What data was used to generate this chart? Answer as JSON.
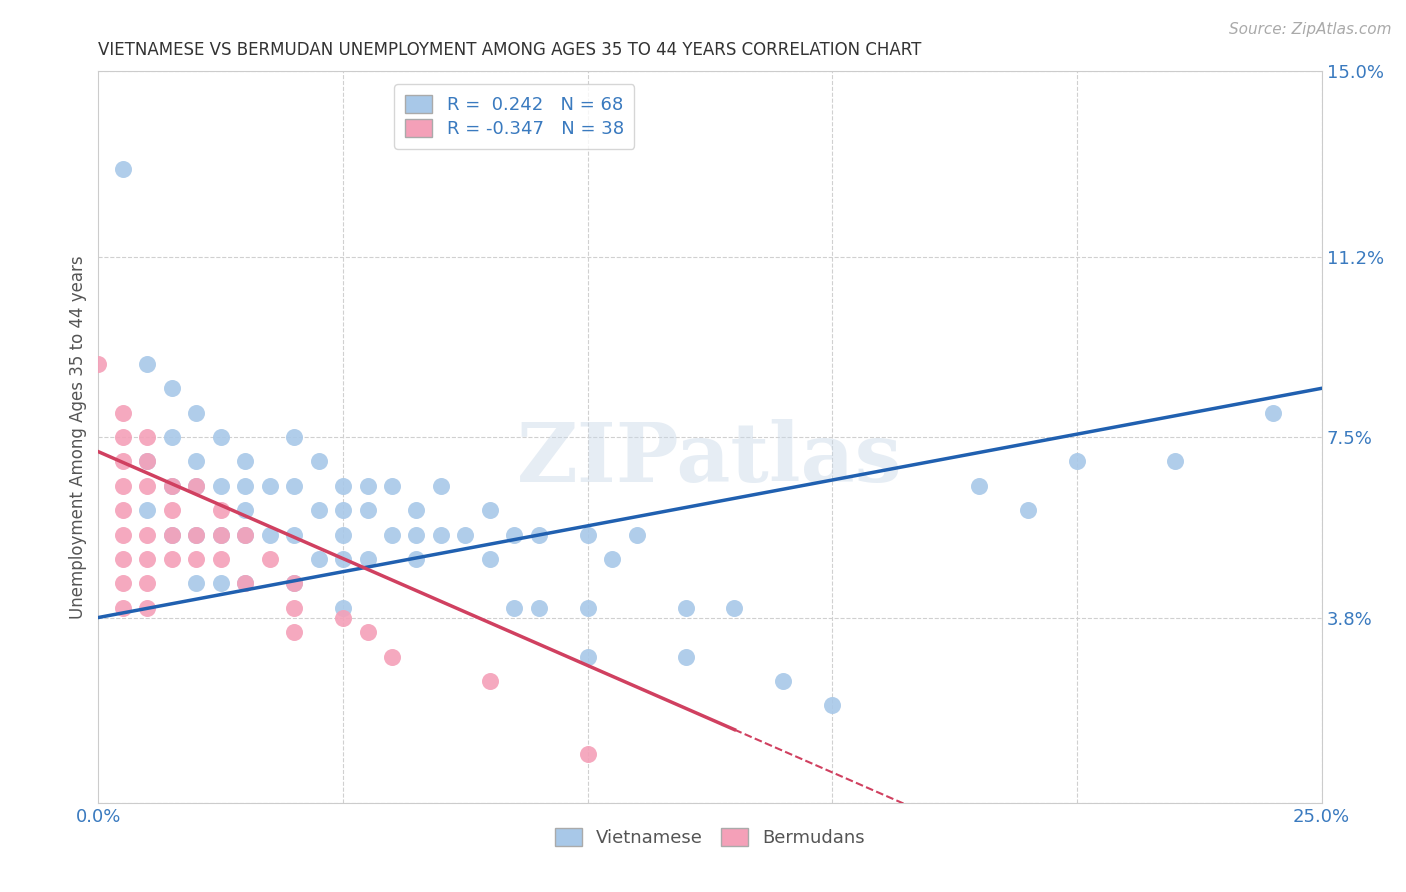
{
  "title": "VIETNAMESE VS BERMUDAN UNEMPLOYMENT AMONG AGES 35 TO 44 YEARS CORRELATION CHART",
  "source": "Source: ZipAtlas.com",
  "ylabel": "Unemployment Among Ages 35 to 44 years",
  "xlim": [
    0.0,
    0.25
  ],
  "ylim": [
    0.0,
    0.15
  ],
  "xticks": [
    0.0,
    0.05,
    0.1,
    0.15,
    0.2,
    0.25
  ],
  "xticklabels": [
    "0.0%",
    "",
    "",
    "",
    "",
    "25.0%"
  ],
  "yticks_right": [
    0.0,
    0.038,
    0.075,
    0.112,
    0.15
  ],
  "ytick_labels_right": [
    "",
    "3.8%",
    "7.5%",
    "11.2%",
    "15.0%"
  ],
  "grid_color": "#d0d0d0",
  "background_color": "#ffffff",
  "viet_color": "#a8c8e8",
  "berm_color": "#f4a0b8",
  "viet_line_color": "#2060b0",
  "berm_line_color": "#d04060",
  "legend_label_viet": "R =  0.242   N = 68",
  "legend_label_berm": "R = -0.347   N = 38",
  "bottom_legend_viet": "Vietnamese",
  "bottom_legend_berm": "Bermudans",
  "watermark": "ZIPatlas",
  "viet_x": [
    0.005,
    0.01,
    0.01,
    0.01,
    0.015,
    0.015,
    0.015,
    0.015,
    0.02,
    0.02,
    0.02,
    0.02,
    0.02,
    0.025,
    0.025,
    0.025,
    0.025,
    0.03,
    0.03,
    0.03,
    0.03,
    0.03,
    0.035,
    0.035,
    0.04,
    0.04,
    0.04,
    0.04,
    0.045,
    0.045,
    0.045,
    0.05,
    0.05,
    0.05,
    0.05,
    0.05,
    0.055,
    0.055,
    0.055,
    0.06,
    0.06,
    0.065,
    0.065,
    0.065,
    0.07,
    0.07,
    0.075,
    0.08,
    0.08,
    0.085,
    0.085,
    0.09,
    0.09,
    0.1,
    0.1,
    0.1,
    0.105,
    0.11,
    0.12,
    0.12,
    0.13,
    0.14,
    0.15,
    0.18,
    0.19,
    0.2,
    0.22,
    0.24
  ],
  "viet_y": [
    0.13,
    0.09,
    0.07,
    0.06,
    0.085,
    0.075,
    0.065,
    0.055,
    0.08,
    0.07,
    0.065,
    0.055,
    0.045,
    0.075,
    0.065,
    0.055,
    0.045,
    0.07,
    0.065,
    0.06,
    0.055,
    0.045,
    0.065,
    0.055,
    0.075,
    0.065,
    0.055,
    0.045,
    0.07,
    0.06,
    0.05,
    0.065,
    0.06,
    0.055,
    0.05,
    0.04,
    0.065,
    0.06,
    0.05,
    0.065,
    0.055,
    0.06,
    0.055,
    0.05,
    0.065,
    0.055,
    0.055,
    0.06,
    0.05,
    0.055,
    0.04,
    0.055,
    0.04,
    0.055,
    0.04,
    0.03,
    0.05,
    0.055,
    0.04,
    0.03,
    0.04,
    0.025,
    0.02,
    0.065,
    0.06,
    0.07,
    0.07,
    0.08
  ],
  "berm_x": [
    0.0,
    0.005,
    0.005,
    0.005,
    0.005,
    0.005,
    0.005,
    0.005,
    0.005,
    0.005,
    0.01,
    0.01,
    0.01,
    0.01,
    0.01,
    0.01,
    0.01,
    0.015,
    0.015,
    0.015,
    0.015,
    0.02,
    0.02,
    0.02,
    0.025,
    0.025,
    0.025,
    0.03,
    0.03,
    0.035,
    0.04,
    0.04,
    0.04,
    0.05,
    0.055,
    0.06,
    0.08,
    0.1
  ],
  "berm_y": [
    0.09,
    0.08,
    0.075,
    0.07,
    0.065,
    0.06,
    0.055,
    0.05,
    0.045,
    0.04,
    0.075,
    0.07,
    0.065,
    0.055,
    0.05,
    0.045,
    0.04,
    0.065,
    0.06,
    0.055,
    0.05,
    0.065,
    0.055,
    0.05,
    0.06,
    0.055,
    0.05,
    0.055,
    0.045,
    0.05,
    0.045,
    0.04,
    0.035,
    0.038,
    0.035,
    0.03,
    0.025,
    0.01
  ],
  "viet_line_x0": 0.0,
  "viet_line_y0": 0.038,
  "viet_line_x1": 0.25,
  "viet_line_y1": 0.085,
  "berm_line_x0": 0.0,
  "berm_line_y0": 0.072,
  "berm_line_x1": 0.13,
  "berm_line_y1": 0.015
}
